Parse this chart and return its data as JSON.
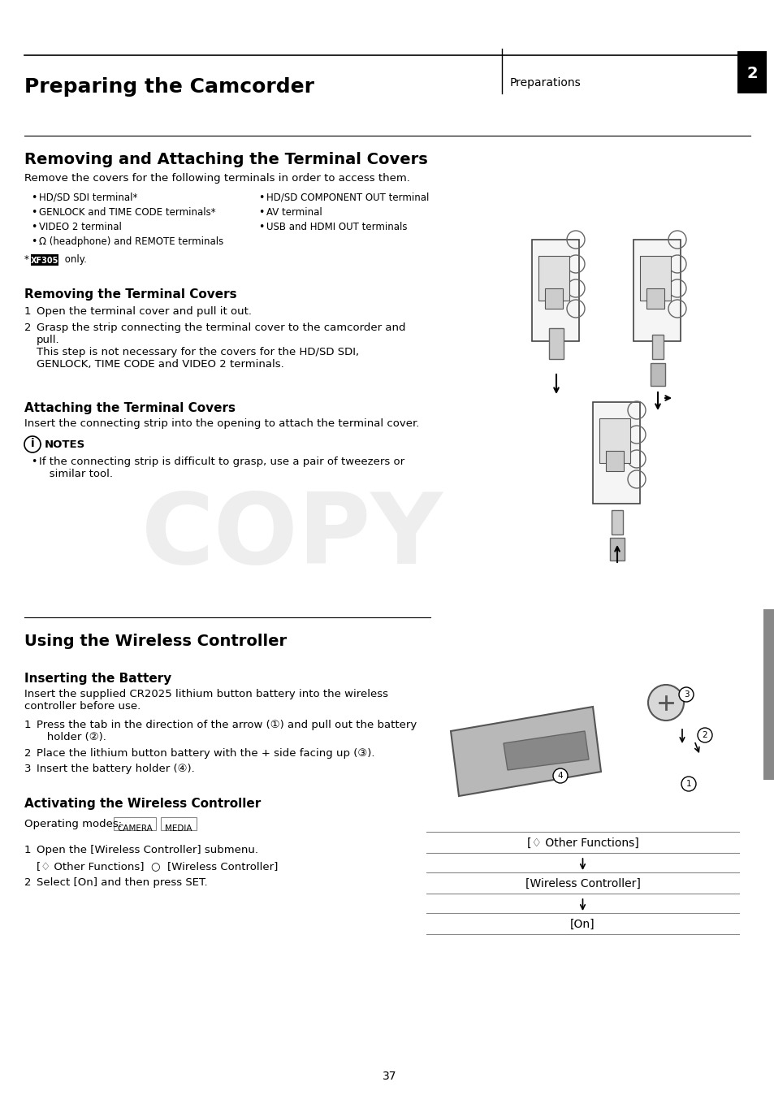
{
  "page_title": "Preparing the Camcorder",
  "section_label": "Preparations",
  "page_number": "2",
  "bg_color": "#ffffff",
  "text_color": "#000000",
  "header_line_color": "#000000",
  "tab_bg_color": "#000000",
  "tab_text_color": "#ffffff",
  "bullets_left": [
    "HD/SD SDI terminal*",
    "GENLOCK and TIME CODE terminals*",
    "VIDEO 2 terminal",
    "Ω (headphone) and REMOTE terminals"
  ],
  "bullets_right": [
    "HD/SD COMPONENT OUT terminal",
    "AV terminal",
    "USB and HDMI OUT terminals"
  ],
  "menu_items": [
    {
      "label": "[♢ Other Functions]",
      "arrow": true
    },
    {
      "label": "[Wireless Controller]",
      "arrow": true
    },
    {
      "label": "[On]",
      "arrow": false
    }
  ]
}
